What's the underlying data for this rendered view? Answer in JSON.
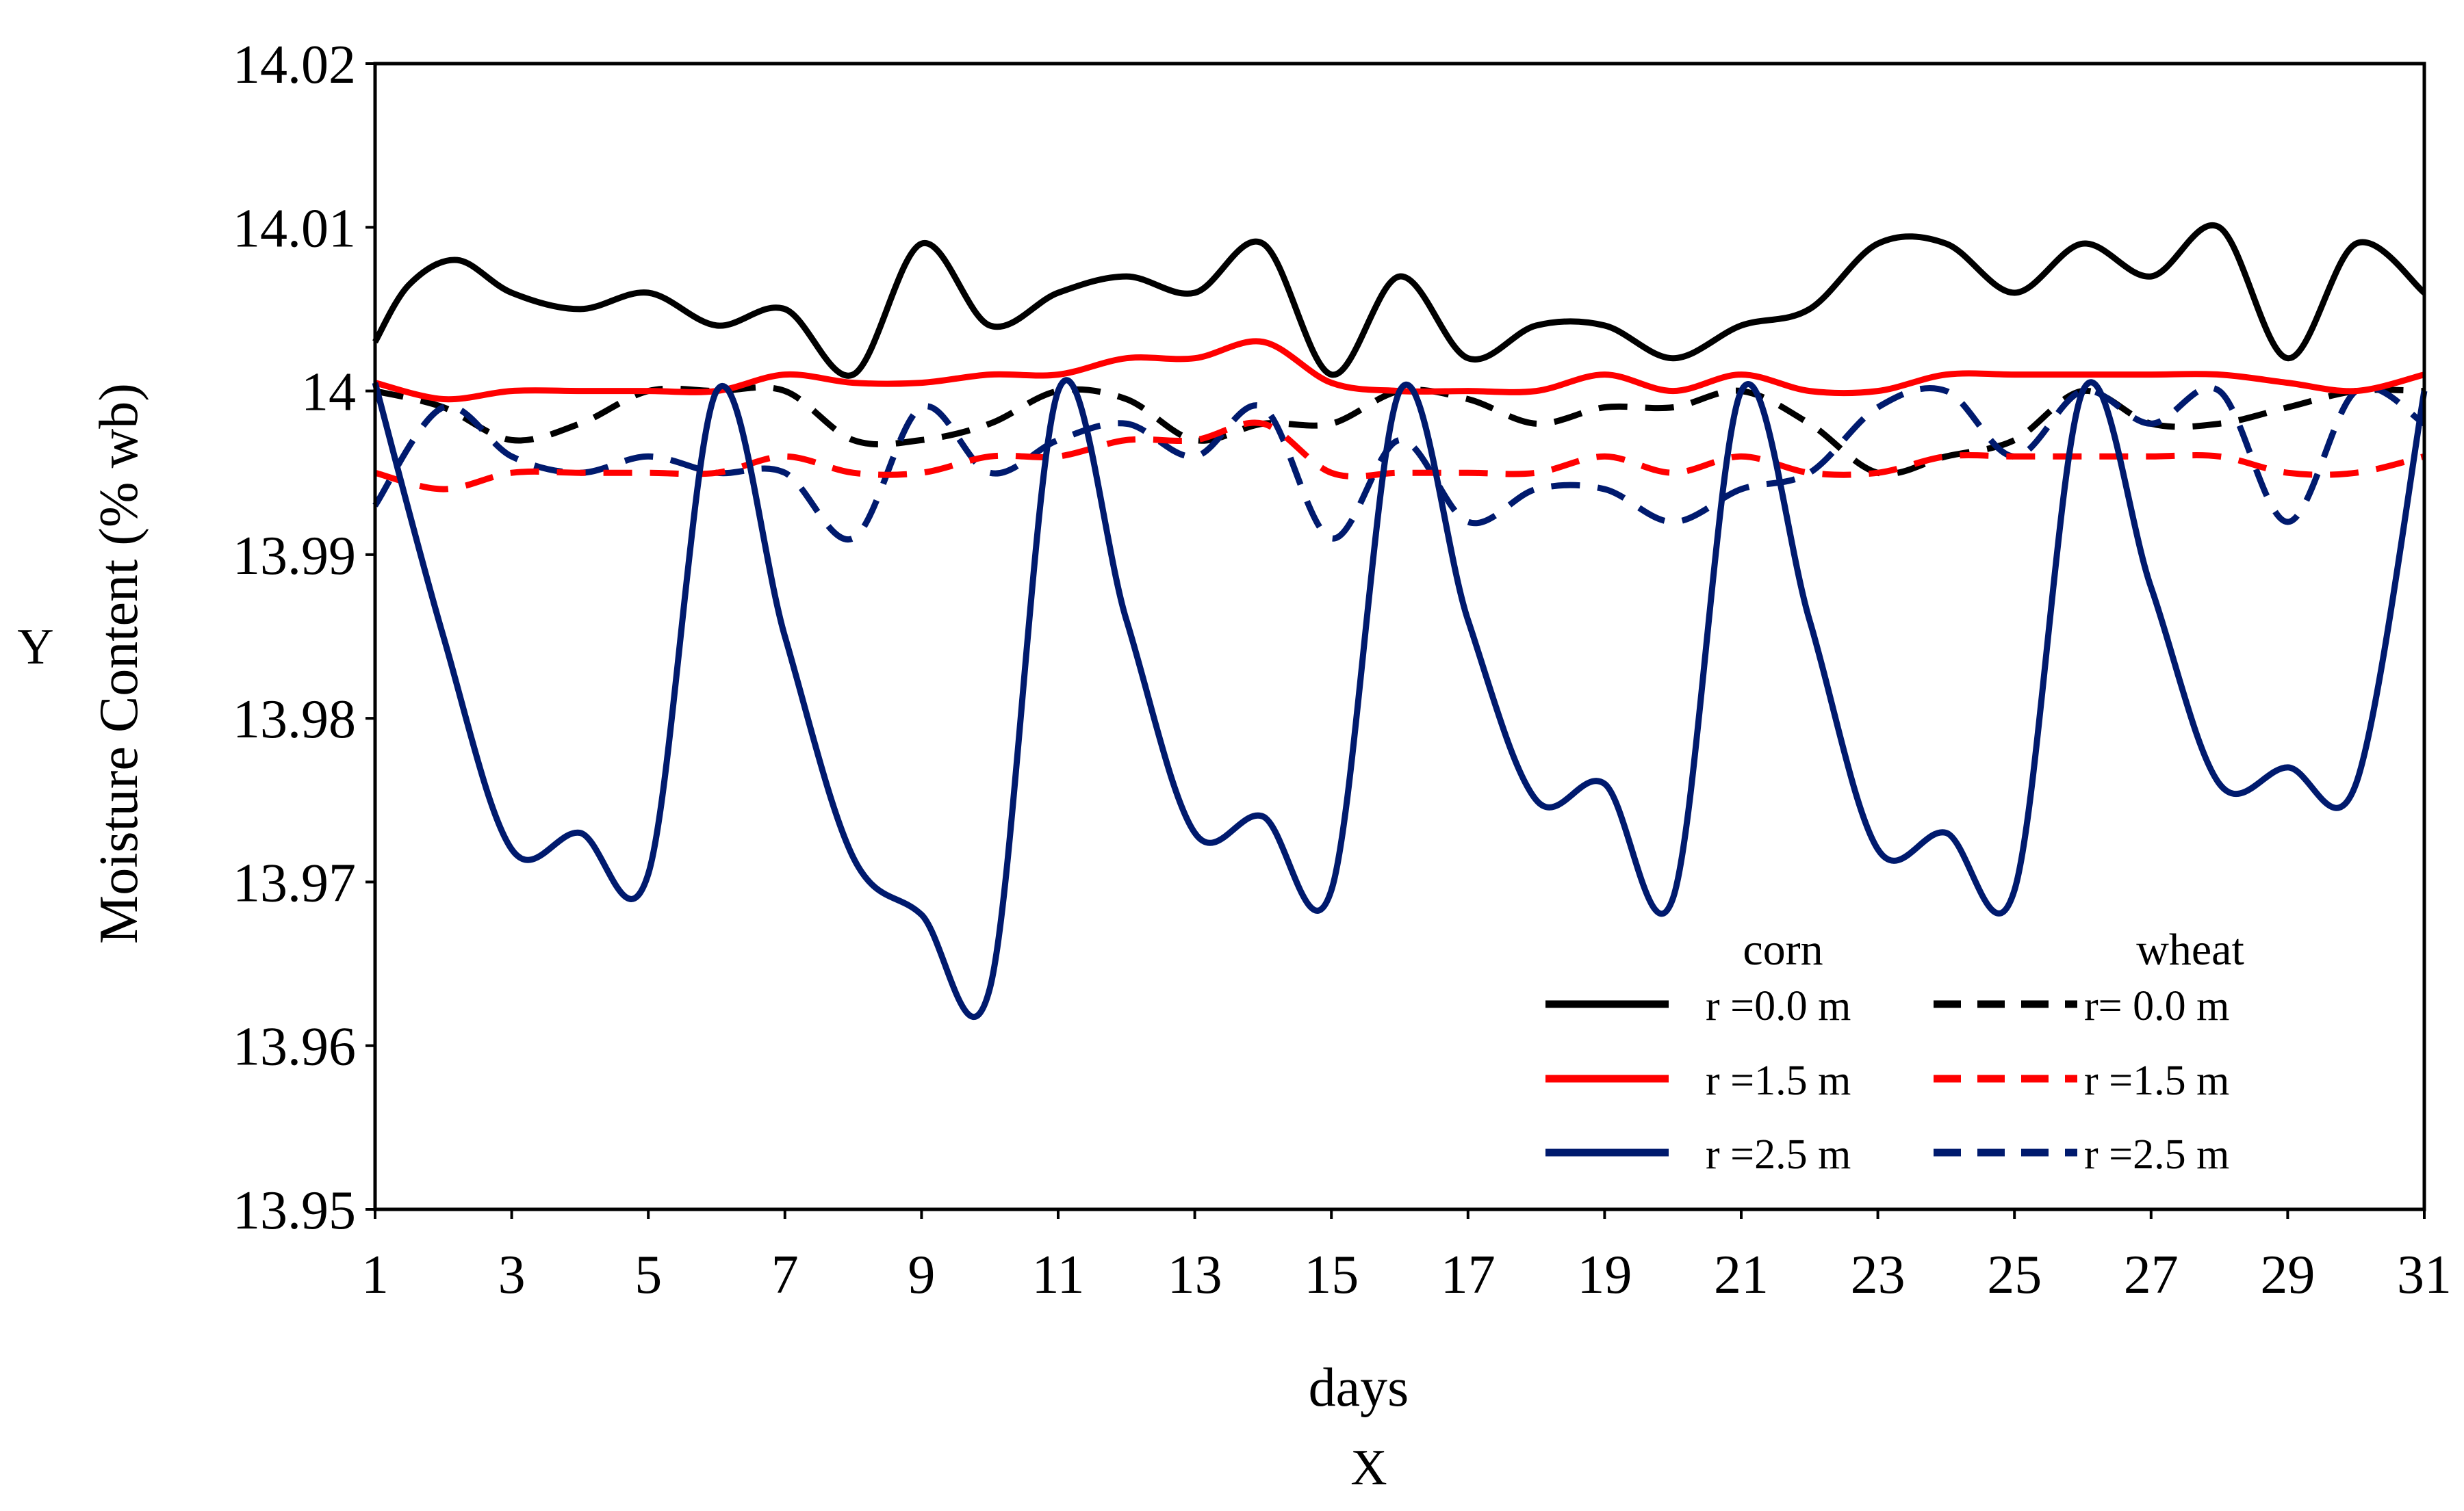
{
  "chart_data": {
    "type": "line",
    "title": "",
    "xlabel": "days",
    "ylabel": "Moisture Content (% wb)",
    "x_axis_letter": "X",
    "y_axis_letter": "Y",
    "xlim": [
      1,
      31
    ],
    "ylim": [
      13.95,
      14.02
    ],
    "x_ticks": [
      1,
      3,
      5,
      7,
      9,
      11,
      13,
      15,
      17,
      19,
      21,
      23,
      25,
      27,
      29,
      31
    ],
    "y_ticks": [
      13.95,
      13.96,
      13.97,
      13.98,
      13.99,
      14,
      14.01,
      14.02
    ],
    "y_tick_labels": [
      "13.95",
      "13.96",
      "13.97",
      "13.98",
      "13.99",
      "14",
      "14.01",
      "14.02"
    ],
    "grid": false,
    "legend": {
      "placement": "bottom-right",
      "group_headers": [
        "corn",
        "wheat"
      ]
    },
    "x": [
      1,
      2,
      3,
      4,
      5,
      6,
      7,
      8,
      9,
      10,
      11,
      12,
      13,
      14,
      15,
      16,
      17,
      18,
      19,
      20,
      21,
      22,
      23,
      24,
      25,
      26,
      27,
      28,
      29,
      30,
      31
    ],
    "series": [
      {
        "name": "r =0.0 m",
        "group": "corn",
        "color": "#000000",
        "dash": "solid",
        "x": [
          1,
          1.5,
          2.2,
          3,
          4,
          5,
          6,
          7,
          8,
          9,
          10,
          11,
          12,
          13,
          14,
          15,
          16,
          17,
          18,
          19,
          20,
          21,
          22,
          23,
          24,
          25,
          26,
          27,
          28,
          29,
          30,
          31
        ],
        "values": [
          14.003,
          14.0065,
          14.008,
          14.006,
          14.005,
          14.006,
          14.004,
          14.005,
          14.001,
          14.009,
          14.004,
          14.006,
          14.007,
          14.006,
          14.009,
          14.001,
          14.007,
          14.002,
          14.004,
          14.004,
          14.002,
          14.004,
          14.005,
          14.009,
          14.009,
          14.006,
          14.009,
          14.007,
          14.01,
          14.002,
          14.009,
          14.006
        ]
      },
      {
        "name": "r =1.5 m",
        "group": "corn",
        "color": "#ff0000",
        "dash": "solid",
        "x": [
          1,
          2,
          3,
          4,
          5,
          6,
          7,
          8,
          9,
          10,
          11,
          12,
          13,
          14,
          15,
          16,
          17,
          18,
          19,
          20,
          21,
          22,
          23,
          24,
          25,
          26,
          27,
          28,
          29,
          30,
          31
        ],
        "values": [
          14.0005,
          13.9995,
          14.0,
          14.0,
          14.0,
          14.0,
          14.001,
          14.0005,
          14.0005,
          14.001,
          14.001,
          14.002,
          14.002,
          14.003,
          14.0005,
          14.0,
          14.0,
          14.0,
          14.001,
          14.0,
          14.001,
          14.0,
          14.0,
          14.001,
          14.001,
          14.001,
          14.001,
          14.001,
          14.0005,
          14.0,
          14.001
        ]
      },
      {
        "name": "r =2.5 m",
        "group": "corn",
        "color": "#001a6e",
        "dash": "solid",
        "x": [
          1,
          2,
          3,
          4,
          5,
          6,
          7,
          8,
          9,
          10,
          11,
          12,
          13,
          14,
          15,
          16,
          17,
          18,
          19,
          20,
          21,
          22,
          23,
          24,
          25,
          26,
          27,
          28,
          29,
          30,
          31
        ],
        "values": [
          14.0005,
          13.985,
          13.972,
          13.973,
          13.9705,
          14.0,
          13.985,
          13.9715,
          13.968,
          13.9635,
          14.0,
          13.986,
          13.973,
          13.974,
          13.9695,
          14.0,
          13.986,
          13.975,
          13.976,
          13.969,
          14.0,
          13.986,
          13.972,
          13.973,
          13.9695,
          14.0,
          13.988,
          13.976,
          13.977,
          13.976,
          14.0
        ]
      },
      {
        "name": "r= 0.0 m",
        "group": "wheat",
        "color": "#000000",
        "dash": "dashed",
        "x": [
          1,
          2,
          3,
          4,
          5,
          6,
          7,
          8,
          9,
          10,
          11,
          12,
          13,
          14,
          15,
          16,
          17,
          18,
          19,
          20,
          21,
          22,
          23,
          24,
          25,
          26,
          27,
          28,
          29,
          30,
          31
        ],
        "values": [
          14.0,
          13.999,
          13.997,
          13.998,
          14.0,
          14.0,
          14.0,
          13.997,
          13.997,
          13.998,
          14.0,
          13.9995,
          13.997,
          13.998,
          13.998,
          14.0,
          13.9995,
          13.998,
          13.999,
          13.999,
          14.0,
          13.998,
          13.995,
          13.996,
          13.997,
          14.0,
          13.998,
          13.998,
          13.999,
          14.0,
          14.0
        ]
      },
      {
        "name": "r =1.5 m",
        "group": "wheat",
        "color": "#ff0000",
        "dash": "dashed",
        "x": [
          1,
          2,
          3,
          4,
          5,
          6,
          7,
          8,
          9,
          10,
          11,
          12,
          13,
          14,
          15,
          16,
          17,
          18,
          19,
          20,
          21,
          22,
          23,
          24,
          25,
          26,
          27,
          28,
          29,
          30,
          31
        ],
        "values": [
          13.995,
          13.994,
          13.995,
          13.995,
          13.995,
          13.995,
          13.996,
          13.995,
          13.995,
          13.996,
          13.996,
          13.997,
          13.997,
          13.998,
          13.995,
          13.995,
          13.995,
          13.995,
          13.996,
          13.995,
          13.996,
          13.995,
          13.995,
          13.996,
          13.996,
          13.996,
          13.996,
          13.996,
          13.995,
          13.995,
          13.996
        ]
      },
      {
        "name": "r =2.5 m",
        "group": "wheat",
        "color": "#001a6e",
        "dash": "dashed",
        "x": [
          1,
          2,
          3,
          4,
          5,
          6,
          7,
          8,
          9,
          10,
          11,
          12,
          13,
          14,
          15,
          16,
          17,
          18,
          19,
          20,
          21,
          22,
          23,
          24,
          25,
          26,
          27,
          28,
          29,
          30,
          31
        ],
        "values": [
          13.993,
          13.999,
          13.996,
          13.995,
          13.996,
          13.995,
          13.995,
          13.991,
          13.999,
          13.995,
          13.997,
          13.998,
          13.996,
          13.999,
          13.991,
          13.997,
          13.992,
          13.994,
          13.994,
          13.992,
          13.994,
          13.995,
          13.999,
          14.0,
          13.996,
          14.0,
          13.998,
          14.0,
          13.992,
          14.0,
          13.998
        ]
      }
    ]
  }
}
